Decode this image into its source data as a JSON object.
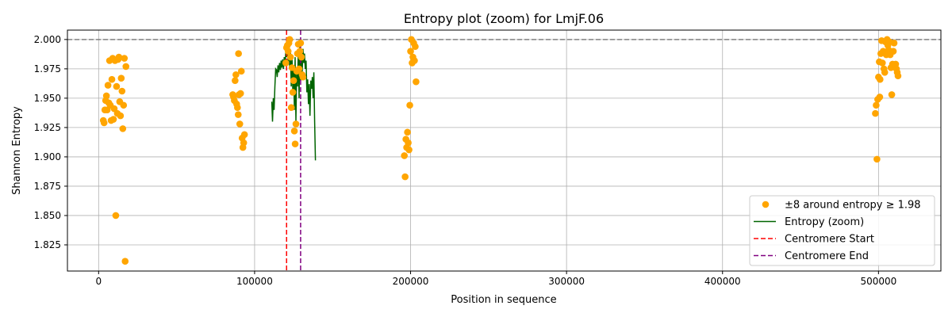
{
  "chart_data": {
    "type": "scatter",
    "title": "Entropy plot (zoom) for LmjF.06",
    "xlabel": "Position in sequence",
    "ylabel": "Shannon Entropy",
    "xlim": [
      -20000,
      540000
    ],
    "ylim": [
      1.8027,
      2.008
    ],
    "xticks": [
      0,
      100000,
      200000,
      300000,
      400000,
      500000
    ],
    "xtick_labels": [
      "0",
      "100000",
      "200000",
      "300000",
      "400000",
      "500000"
    ],
    "yticks": [
      1.825,
      1.85,
      1.875,
      1.9,
      1.925,
      1.95,
      1.975,
      2.0
    ],
    "ytick_labels": [
      "1.825",
      "1.850",
      "1.875",
      "1.900",
      "1.925",
      "1.950",
      "1.975",
      "2.000"
    ],
    "grid": true,
    "legend_position": "lower-right",
    "reference_line": {
      "y": 2.0,
      "style": "dashed",
      "color": "#808080"
    },
    "colors": {
      "scatter": "#FFA500",
      "line": "#006400",
      "centromere_start": "#FF0000",
      "centromere_end": "#800080"
    },
    "legend": [
      {
        "label": "±8 around entropy ≥ 1.98",
        "kind": "dot",
        "color": "#FFA500"
      },
      {
        "label": "Entropy (zoom)",
        "kind": "line",
        "color": "#006400"
      },
      {
        "label": "Centromere Start",
        "kind": "dash",
        "color": "#FF0000"
      },
      {
        "label": "Centromere End",
        "kind": "dash",
        "color": "#800080"
      }
    ],
    "vlines": [
      {
        "name": "Centromere Start",
        "x": 120500,
        "color": "#FF0000"
      },
      {
        "name": "Centromere End",
        "x": 129500,
        "color": "#800080"
      }
    ],
    "series": [
      {
        "name": "±8 around entropy ≥ 1.98",
        "kind": "scatter",
        "points": [
          [
            3000,
            1.931
          ],
          [
            3500,
            1.929
          ],
          [
            4000,
            1.94
          ],
          [
            4500,
            1.948
          ],
          [
            5000,
            1.952
          ],
          [
            5500,
            1.94
          ],
          [
            6000,
            1.961
          ],
          [
            6500,
            1.946
          ],
          [
            7000,
            1.982
          ],
          [
            7500,
            1.944
          ],
          [
            8000,
            1.931
          ],
          [
            8500,
            1.966
          ],
          [
            9000,
            1.984
          ],
          [
            9500,
            1.932
          ],
          [
            10000,
            1.941
          ],
          [
            10500,
            1.982
          ],
          [
            11000,
            1.85
          ],
          [
            11500,
            1.96
          ],
          [
            12000,
            1.937
          ],
          [
            12500,
            1.983
          ],
          [
            13000,
            1.985
          ],
          [
            13500,
            1.947
          ],
          [
            14000,
            1.935
          ],
          [
            14500,
            1.967
          ],
          [
            15000,
            1.956
          ],
          [
            15500,
            1.924
          ],
          [
            16000,
            1.944
          ],
          [
            16500,
            1.984
          ],
          [
            17000,
            1.811
          ],
          [
            17500,
            1.977
          ],
          [
            86000,
            1.953
          ],
          [
            86500,
            1.951
          ],
          [
            87000,
            1.948
          ],
          [
            87500,
            1.965
          ],
          [
            88000,
            1.97
          ],
          [
            88500,
            1.945
          ],
          [
            89000,
            1.942
          ],
          [
            89500,
            1.936
          ],
          [
            89700,
            1.988
          ],
          [
            90000,
            1.953
          ],
          [
            90500,
            1.928
          ],
          [
            91000,
            1.954
          ],
          [
            91500,
            1.973
          ],
          [
            92000,
            1.916
          ],
          [
            92500,
            1.908
          ],
          [
            93000,
            1.912
          ],
          [
            93500,
            1.919
          ],
          [
            120000,
            1.98
          ],
          [
            120500,
            1.993
          ],
          [
            121000,
            1.995
          ],
          [
            121500,
            1.99
          ],
          [
            122000,
            1.997
          ],
          [
            122500,
            2.0
          ],
          [
            123000,
            1.985
          ],
          [
            123500,
            1.942
          ],
          [
            124000,
            1.976
          ],
          [
            124500,
            1.955
          ],
          [
            125000,
            1.965
          ],
          [
            125500,
            1.922
          ],
          [
            126000,
            1.911
          ],
          [
            126500,
            1.928
          ],
          [
            127000,
            1.973
          ],
          [
            127500,
            1.988
          ],
          [
            128000,
            1.996
          ],
          [
            128500,
            1.975
          ],
          [
            129000,
            1.99
          ],
          [
            129500,
            1.997
          ],
          [
            130000,
            1.985
          ],
          [
            130500,
            1.97
          ],
          [
            131000,
            1.968
          ],
          [
            196000,
            1.901
          ],
          [
            196500,
            1.883
          ],
          [
            197000,
            1.915
          ],
          [
            197500,
            1.908
          ],
          [
            198000,
            1.921
          ],
          [
            198500,
            1.912
          ],
          [
            199000,
            1.906
          ],
          [
            199500,
            1.944
          ],
          [
            200000,
            1.99
          ],
          [
            200500,
            2.0
          ],
          [
            201000,
            1.98
          ],
          [
            201500,
            1.985
          ],
          [
            202000,
            1.997
          ],
          [
            202500,
            1.982
          ],
          [
            203000,
            1.994
          ],
          [
            203500,
            1.964
          ],
          [
            498000,
            1.937
          ],
          [
            498500,
            1.944
          ],
          [
            499000,
            1.898
          ],
          [
            499500,
            1.949
          ],
          [
            500000,
            1.968
          ],
          [
            500500,
            1.981
          ],
          [
            500800,
            1.951
          ],
          [
            501000,
            1.966
          ],
          [
            501500,
            1.988
          ],
          [
            502000,
            1.999
          ],
          [
            502500,
            1.98
          ],
          [
            503000,
            1.99
          ],
          [
            503500,
            1.975
          ],
          [
            504000,
            1.972
          ],
          [
            504500,
            1.998
          ],
          [
            505000,
            1.987
          ],
          [
            505500,
            2.0
          ],
          [
            506000,
            1.995
          ],
          [
            506500,
            1.991
          ],
          [
            507000,
            1.998
          ],
          [
            507500,
            1.987
          ],
          [
            508000,
            1.976
          ],
          [
            508500,
            1.953
          ],
          [
            509000,
            1.979
          ],
          [
            509500,
            1.99
          ],
          [
            510000,
            1.997
          ],
          [
            510500,
            1.978
          ],
          [
            511000,
            1.979
          ],
          [
            511500,
            1.975
          ],
          [
            512000,
            1.972
          ],
          [
            512500,
            1.969
          ]
        ]
      },
      {
        "name": "Entropy (zoom)",
        "kind": "line",
        "points": [
          [
            111000,
            1.947
          ],
          [
            111500,
            1.93
          ],
          [
            112000,
            1.95
          ],
          [
            112500,
            1.94
          ],
          [
            113000,
            1.96
          ],
          [
            113500,
            1.975
          ],
          [
            114000,
            1.974
          ],
          [
            114500,
            1.968
          ],
          [
            115000,
            1.978
          ],
          [
            115500,
            1.972
          ],
          [
            116000,
            1.98
          ],
          [
            116500,
            1.974
          ],
          [
            117000,
            1.982
          ],
          [
            117500,
            1.976
          ],
          [
            118000,
            1.983
          ],
          [
            118500,
            1.975
          ],
          [
            119000,
            1.985
          ],
          [
            119500,
            1.978
          ],
          [
            120000,
            1.99
          ],
          [
            120500,
            1.985
          ],
          [
            121000,
            1.995
          ],
          [
            121500,
            1.98
          ],
          [
            122000,
            1.997
          ],
          [
            122500,
            1.975
          ],
          [
            123000,
            1.99
          ],
          [
            123500,
            1.96
          ],
          [
            124000,
            1.985
          ],
          [
            124500,
            1.955
          ],
          [
            125000,
            1.975
          ],
          [
            125500,
            1.94
          ],
          [
            126000,
            1.985
          ],
          [
            126500,
            1.93
          ],
          [
            127000,
            1.975
          ],
          [
            127500,
            1.96
          ],
          [
            128000,
            1.99
          ],
          [
            128500,
            1.95
          ],
          [
            129000,
            1.995
          ],
          [
            129500,
            1.965
          ],
          [
            130000,
            1.985
          ],
          [
            130500,
            1.972
          ],
          [
            131000,
            1.992
          ],
          [
            131500,
            1.98
          ],
          [
            132000,
            1.988
          ],
          [
            132500,
            1.975
          ],
          [
            133000,
            1.982
          ],
          [
            133500,
            1.955
          ],
          [
            134000,
            1.966
          ],
          [
            134500,
            1.945
          ],
          [
            135000,
            1.962
          ],
          [
            135500,
            1.935
          ],
          [
            136000,
            1.965
          ],
          [
            136500,
            1.958
          ],
          [
            137000,
            1.968
          ],
          [
            137500,
            1.95
          ],
          [
            138000,
            1.972
          ],
          [
            138500,
            1.93
          ],
          [
            139000,
            1.897
          ]
        ]
      }
    ]
  }
}
